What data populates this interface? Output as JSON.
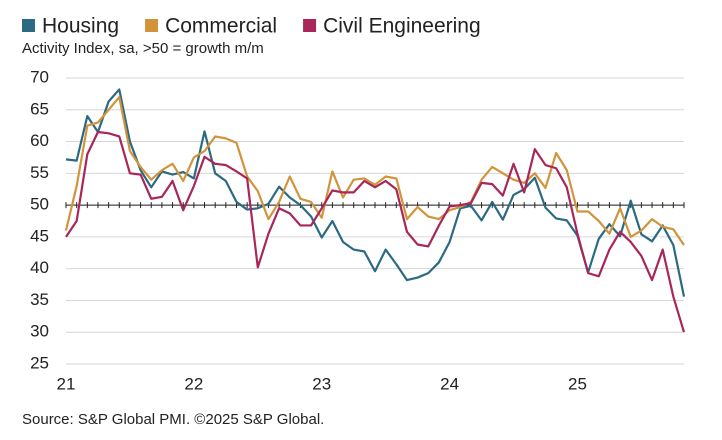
{
  "chart_data": {
    "type": "line",
    "subtitle": "Activity Index, sa, >50 = growth m/m",
    "source": "Source: S&P Global PMI. ©2025 S&P Global.",
    "categories": [
      "21",
      null,
      null,
      null,
      null,
      null,
      null,
      null,
      null,
      null,
      null,
      null,
      "22",
      null,
      null,
      null,
      null,
      null,
      null,
      null,
      null,
      null,
      null,
      null,
      "23",
      null,
      null,
      null,
      null,
      null,
      null,
      null,
      null,
      null,
      null,
      null,
      "24",
      null,
      null,
      null,
      null,
      null,
      null,
      null,
      null,
      null,
      null,
      null,
      "25",
      null,
      null,
      null,
      null,
      null,
      null,
      null,
      null,
      null,
      null
    ],
    "series": [
      {
        "name": "Housing",
        "color": "#2b6a82",
        "values": [
          57.2,
          57,
          64,
          61.5,
          66.3,
          68.2,
          60,
          55.5,
          52.8,
          55.3,
          54.8,
          55.2,
          54.2,
          61.6,
          55,
          53.8,
          50.5,
          49.3,
          49.5,
          50.2,
          52.9,
          51.2,
          50,
          48.2,
          44.9,
          47.5,
          44.2,
          43,
          42.7,
          39.6,
          43,
          40.7,
          38.2,
          38.6,
          39.3,
          41,
          44.2,
          49.5,
          49.9,
          47.6,
          50.5,
          47.7,
          51.6,
          52.5,
          54.3,
          49.6,
          47.9,
          47.6,
          45.2,
          39.4,
          44.7,
          47,
          45.1,
          50.7,
          45.4,
          44.3,
          46.8,
          43.7,
          35.6
        ]
      },
      {
        "name": "Commercial",
        "color": "#d1943a",
        "values": [
          46,
          53,
          62.5,
          63,
          65,
          67,
          58.5,
          56,
          54,
          55.5,
          56.5,
          53.8,
          57.5,
          58.5,
          60.8,
          60.5,
          59.8,
          54.5,
          52.2,
          47.8,
          50.5,
          54.5,
          51,
          50.5,
          48,
          55.3,
          51.2,
          54,
          54.2,
          53.2,
          54.5,
          54.2,
          47.8,
          49.7,
          48.2,
          47.8,
          49.2,
          49.7,
          50.5,
          54,
          56,
          55,
          54,
          53.5,
          55,
          52.7,
          58.2,
          55.5,
          49,
          49,
          47.5,
          45.5,
          49.5,
          45,
          46,
          47.8,
          46.6,
          46.2,
          43.7
        ]
      },
      {
        "name": "Civil Engineering",
        "color": "#a8265a",
        "values": [
          45,
          47.5,
          58,
          61.5,
          61.3,
          60.8,
          55,
          54.8,
          51,
          51.3,
          53.8,
          49.2,
          53,
          57.6,
          56.5,
          56.3,
          55.3,
          54.2,
          40.2,
          45.5,
          49.5,
          48.7,
          46.8,
          46.8,
          49.5,
          52.3,
          52,
          52,
          53.8,
          52.8,
          53.8,
          52.5,
          45.8,
          43.8,
          43.5,
          46.8,
          49.8,
          50,
          50.3,
          53.5,
          53.3,
          51.5,
          56.5,
          52,
          58.8,
          56.3,
          55.8,
          52.8,
          45.5,
          39.3,
          38.8,
          43,
          45.8,
          44.2,
          42,
          38.2,
          43,
          35.6,
          30
        ]
      }
    ],
    "ylim": [
      25,
      70
    ],
    "yticks": [
      25,
      30,
      35,
      40,
      45,
      50,
      55,
      60,
      65,
      70
    ],
    "grid": true,
    "baseline": 50
  }
}
